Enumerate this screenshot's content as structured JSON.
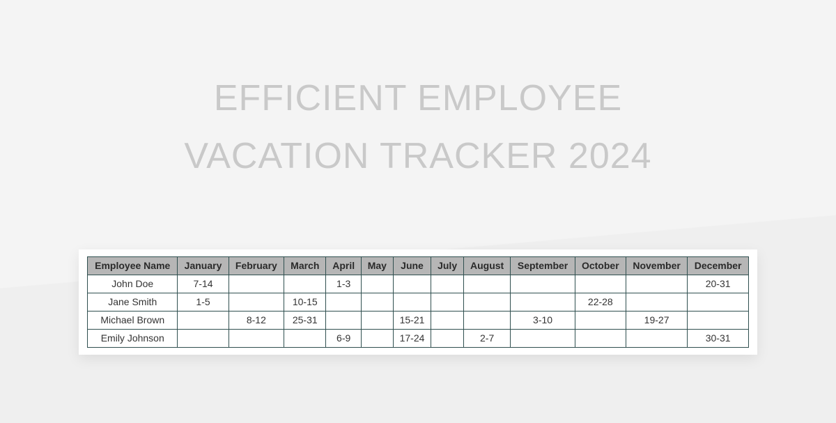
{
  "title": {
    "line1": "EFFICIENT EMPLOYEE",
    "line2": "VACATION TRACKER 2024"
  },
  "table": {
    "header_bg": "#b6b6b6",
    "border_color": "#2f4f4f",
    "text_color": "#333333",
    "header_text_color": "#2a2a2a",
    "columns": [
      "Employee Name",
      "January",
      "February",
      "March",
      "April",
      "May",
      "June",
      "July",
      "August",
      "September",
      "October",
      "November",
      "December"
    ],
    "rows": [
      {
        "name": "John Doe",
        "cells": [
          "7-14",
          "",
          "",
          "1-3",
          "",
          "",
          "",
          "",
          "",
          "",
          "",
          "20-31"
        ]
      },
      {
        "name": "Jane Smith",
        "cells": [
          "1-5",
          "",
          "10-15",
          "",
          "",
          "",
          "",
          "",
          "",
          "22-28",
          "",
          ""
        ]
      },
      {
        "name": "Michael Brown",
        "cells": [
          "",
          "8-12",
          "25-31",
          "",
          "",
          "15-21",
          "",
          "",
          "3-10",
          "",
          "19-27",
          ""
        ]
      },
      {
        "name": "Emily Johnson",
        "cells": [
          "",
          "",
          "",
          "6-9",
          "",
          "17-24",
          "",
          "2-7",
          "",
          "",
          "",
          "30-31"
        ]
      }
    ]
  },
  "style": {
    "title_color": "#c9c9c9",
    "title_fontsize": 52,
    "bg_top": "#f4f4f4",
    "bg_bottom": "#efefef",
    "table_shadow": "rgba(0,0,0,0.08)"
  }
}
